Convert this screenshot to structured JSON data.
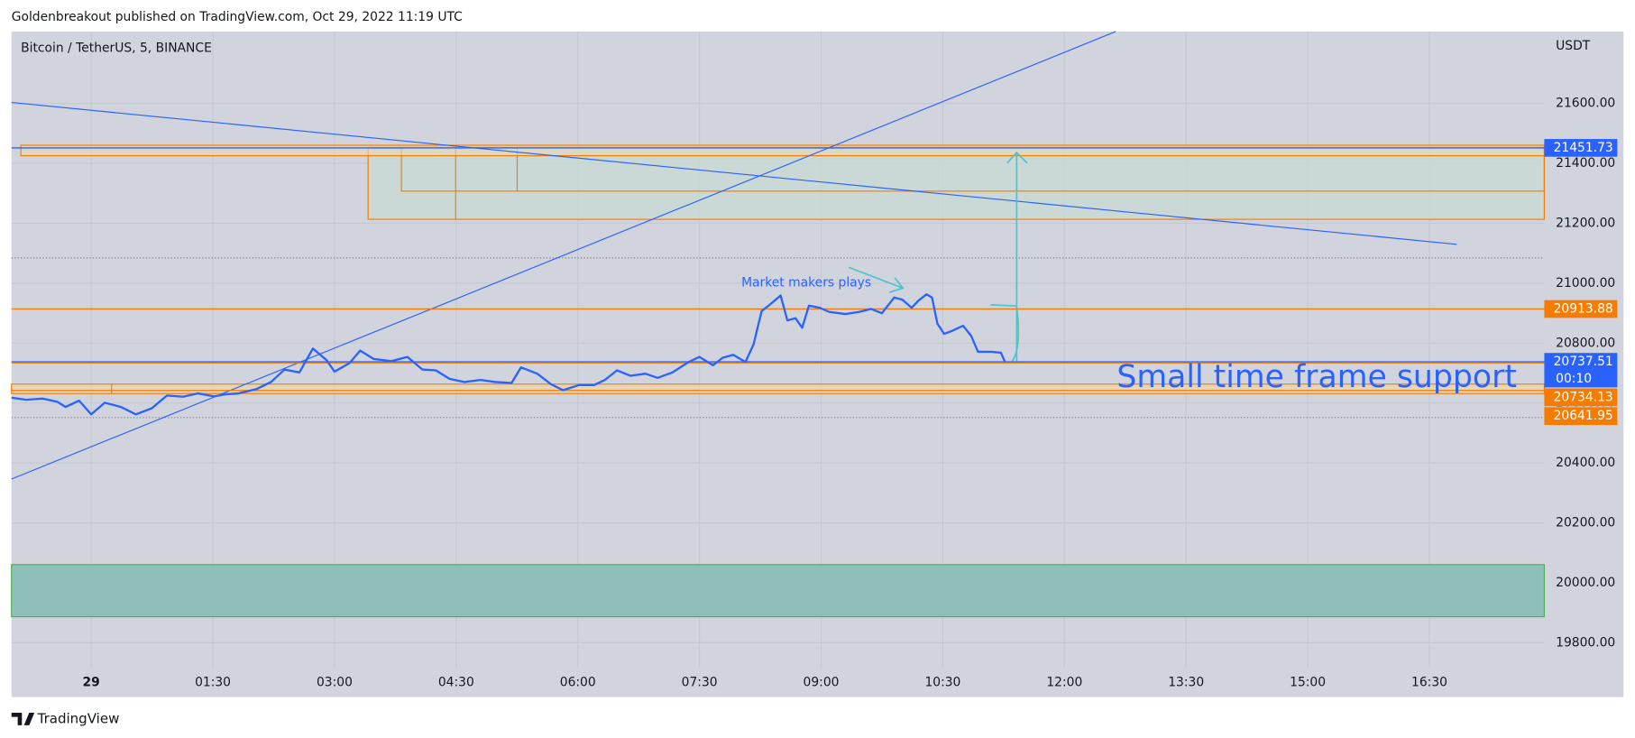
{
  "header": {
    "publisher": "Goldenbreakout published on TradingView.com, Oct 29, 2022 11:19 UTC"
  },
  "chart_data": {
    "type": "line",
    "symbol": "Bitcoin / TetherUS, 5, BINANCE",
    "y_axis_label": "USDT",
    "x": [
      -59,
      -48,
      -36,
      -25,
      -19,
      -9,
      0,
      10,
      22,
      33,
      45,
      56,
      68,
      79,
      91,
      99,
      109,
      122,
      133,
      143,
      154,
      164,
      174,
      180,
      191,
      199,
      209,
      222,
      234,
      245,
      255,
      265,
      276,
      288,
      299,
      311,
      318,
      330,
      340,
      349,
      361,
      372,
      380,
      389,
      399,
      410,
      419,
      430,
      442,
      450,
      460,
      467,
      475,
      484,
      490,
      496,
      502,
      510,
      515,
      521,
      526,
      531,
      539,
      546,
      558,
      568,
      577,
      585,
      594,
      600,
      607,
      612,
      618,
      622,
      626,
      631,
      637,
      645,
      651,
      656,
      666,
      673,
      676
    ],
    "series": [
      {
        "color": "#2962ff",
        "values": [
          20618,
          20611,
          20615,
          20604,
          20587,
          20608,
          20562,
          20601,
          20587,
          20562,
          20583,
          20625,
          20621,
          20632,
          20622,
          20629,
          20632,
          20646,
          20670,
          20712,
          20702,
          20782,
          20744,
          20705,
          20733,
          20775,
          20747,
          20740,
          20754,
          20712,
          20709,
          20681,
          20670,
          20677,
          20670,
          20667,
          20719,
          20698,
          20663,
          20643,
          20660,
          20660,
          20677,
          20709,
          20691,
          20698,
          20684,
          20702,
          20737,
          20754,
          20726,
          20751,
          20761,
          20737,
          20796,
          20907,
          20928,
          20959,
          20876,
          20883,
          20851,
          20925,
          20918,
          20904,
          20897,
          20904,
          20914,
          20900,
          20952,
          20945,
          20918,
          20942,
          20963,
          20952,
          20865,
          20831,
          20841,
          20858,
          20824,
          20771,
          20771,
          20768,
          20737
        ]
      }
    ],
    "xlim": [
      -59,
      1075
    ],
    "ylim": [
      19716,
      21840
    ],
    "xticks": [
      {
        "value": 0,
        "label": "29"
      },
      {
        "value": 90,
        "label": "01:30"
      },
      {
        "value": 180,
        "label": "03:00"
      },
      {
        "value": 270,
        "label": "04:30"
      },
      {
        "value": 360,
        "label": "06:00"
      },
      {
        "value": 450,
        "label": "07:30"
      },
      {
        "value": 540,
        "label": "09:00"
      },
      {
        "value": 630,
        "label": "10:30"
      },
      {
        "value": 720,
        "label": "12:00"
      },
      {
        "value": 810,
        "label": "13:30"
      },
      {
        "value": 900,
        "label": "15:00"
      },
      {
        "value": 990,
        "label": "16:30"
      }
    ],
    "yticks": [
      {
        "value": 21600,
        "label": "21600.00"
      },
      {
        "value": 21400,
        "label": "21400.00"
      },
      {
        "value": 21200,
        "label": "21200.00"
      },
      {
        "value": 21000,
        "label": "21000.00"
      },
      {
        "value": 20800,
        "label": "20800.00"
      },
      {
        "value": 20600,
        "label": "20600.00"
      },
      {
        "value": 20400,
        "label": "20400.00"
      },
      {
        "value": 20200,
        "label": "20200.00"
      },
      {
        "value": 20000,
        "label": "20000.00"
      },
      {
        "value": 19800,
        "label": "19800.00"
      }
    ],
    "grid": true,
    "price_lines": [
      {
        "value": 21451.73,
        "color": "#2962ff"
      },
      {
        "value": 20913.88,
        "color": "#f57c00"
      },
      {
        "value": 20737.51,
        "color": "#2962ff",
        "countdown": "00:10"
      },
      {
        "value": 20734.13,
        "color": "#f57c00"
      },
      {
        "value": 20641.95,
        "color": "#f57c00"
      }
    ],
    "annotations": [
      {
        "text": "Market makers plays"
      },
      {
        "text": "Small time frame support"
      }
    ]
  },
  "footer": {
    "brand": "TradingView"
  }
}
